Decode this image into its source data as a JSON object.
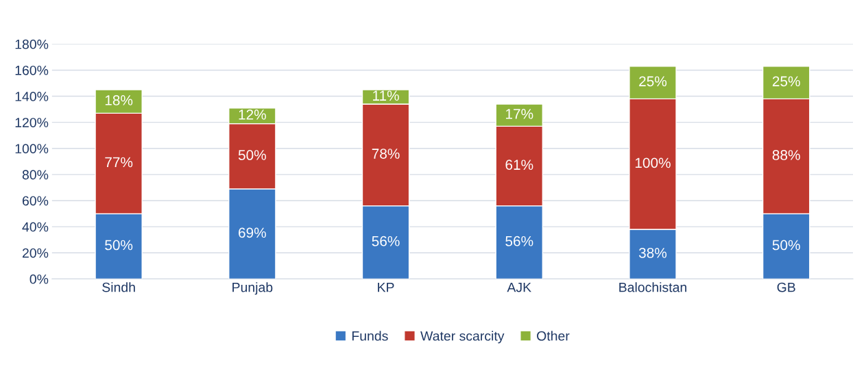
{
  "chart_data": {
    "type": "bar",
    "stacked": true,
    "categories": [
      "Sindh",
      "Punjab",
      "KP",
      "AJK",
      "Balochistan",
      "GB"
    ],
    "series": [
      {
        "name": "Funds",
        "color": "#3a78c3",
        "values": [
          50,
          69,
          56,
          56,
          38,
          50
        ],
        "value_labels": [
          "50%",
          "69%",
          "56%",
          "56%",
          "38%",
          "50%"
        ]
      },
      {
        "name": "Water scarcity",
        "color": "#c0392f",
        "values": [
          77,
          50,
          78,
          61,
          100,
          88
        ],
        "value_labels": [
          "77%",
          "50%",
          "78%",
          "61%",
          "100%",
          "88%"
        ]
      },
      {
        "name": "Other",
        "color": "#8db33a",
        "values": [
          18,
          12,
          11,
          17,
          25,
          25
        ],
        "value_labels": [
          "18%",
          "12%",
          "11%",
          "17%",
          "25%",
          "25%"
        ]
      }
    ],
    "ylim": [
      0,
      180
    ],
    "yticks": [
      {
        "value": 0,
        "label": "0%"
      },
      {
        "value": 20,
        "label": "20%"
      },
      {
        "value": 40,
        "label": "40%"
      },
      {
        "value": 60,
        "label": "60%"
      },
      {
        "value": 80,
        "label": "80%"
      },
      {
        "value": 100,
        "label": "100%"
      },
      {
        "value": 120,
        "label": "120%"
      },
      {
        "value": 140,
        "label": "140%"
      },
      {
        "value": 160,
        "label": "160%"
      },
      {
        "value": 180,
        "label": "180%"
      }
    ],
    "grid": "y",
    "legend": "bottom"
  }
}
